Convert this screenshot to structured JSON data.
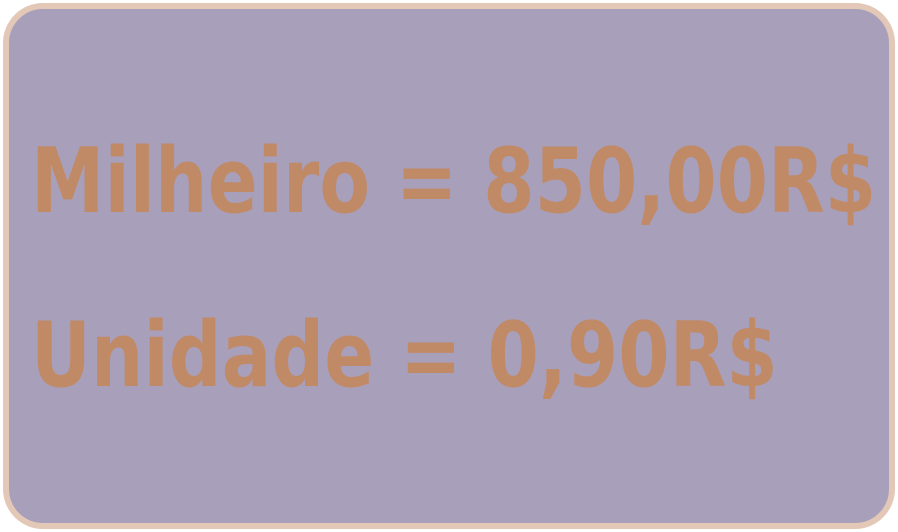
{
  "price_card": {
    "background_color": "#a89fba",
    "border_color": "#e3c8b7",
    "text_color": "#c18a66",
    "lines": [
      {
        "text": "Milheiro = 850,00R$"
      },
      {
        "text": "Unidade = 0,90R$"
      }
    ]
  }
}
